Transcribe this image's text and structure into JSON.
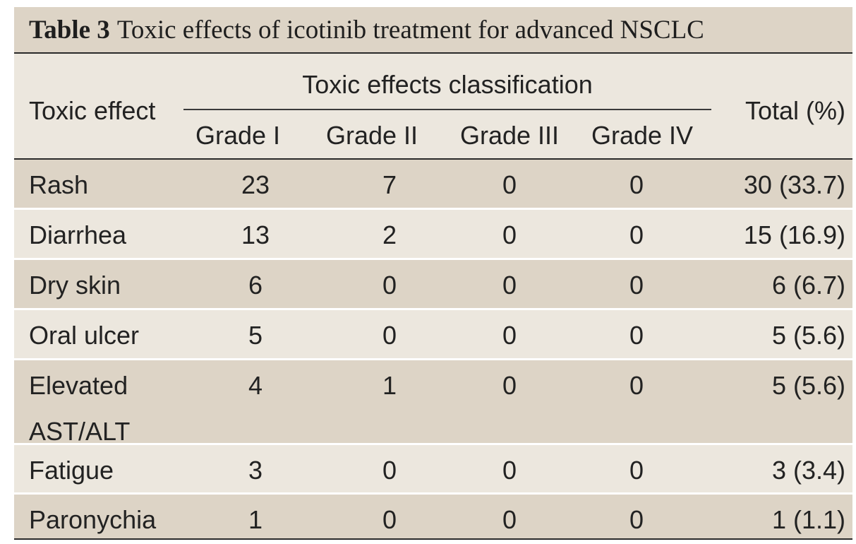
{
  "caption": {
    "label": "Table 3",
    "title": "Toxic effects of icotinib treatment for advanced NSCLC"
  },
  "header": {
    "row_label": "Toxic effect",
    "spanner": "Toxic effects classification",
    "grades": [
      "Grade I",
      "Grade II",
      "Grade III",
      "Grade IV"
    ],
    "total": "Total (%)"
  },
  "rows": [
    {
      "effect": [
        "Rash"
      ],
      "values": [
        "23",
        "7",
        "0",
        "0"
      ],
      "total": "30 (33.7)"
    },
    {
      "effect": [
        "Diarrhea"
      ],
      "values": [
        "13",
        "2",
        "0",
        "0"
      ],
      "total": "15 (16.9)"
    },
    {
      "effect": [
        "Dry skin"
      ],
      "values": [
        "6",
        "0",
        "0",
        "0"
      ],
      "total": "6 (6.7)"
    },
    {
      "effect": [
        "Oral ulcer"
      ],
      "values": [
        "5",
        "0",
        "0",
        "0"
      ],
      "total": "5 (5.6)"
    },
    {
      "effect": [
        "Elevated",
        "AST/ALT"
      ],
      "values": [
        "4",
        "1",
        "0",
        "0"
      ],
      "total": "5 (5.6)"
    },
    {
      "effect": [
        "Fatigue"
      ],
      "values": [
        "3",
        "0",
        "0",
        "0"
      ],
      "total": "3 (3.4)"
    },
    {
      "effect": [
        "Paronychia"
      ],
      "values": [
        "1",
        "0",
        "0",
        "0"
      ],
      "total": "1 (1.1)"
    }
  ],
  "colors": {
    "band_dark": "#ddd4c6",
    "band_light": "#ece7de",
    "rule": "#2a2a2a"
  }
}
